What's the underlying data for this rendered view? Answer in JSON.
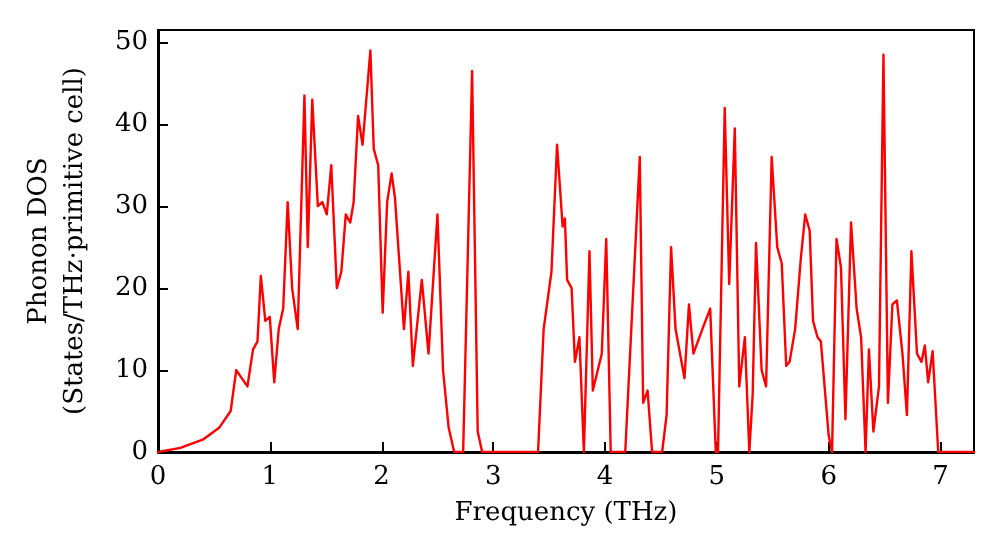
{
  "chart_data": {
    "type": "line",
    "xlabel": "Frequency (THz)",
    "ylabel": "Phonon DOS\n(States/THz·primitive cell)",
    "xlim": [
      0,
      7.3
    ],
    "ylim": [
      0,
      51.5
    ],
    "xticks": [
      0,
      1,
      2,
      3,
      4,
      5,
      6,
      7
    ],
    "yticks": [
      0,
      10,
      20,
      30,
      40,
      50
    ],
    "grid": false,
    "marker": "none",
    "line_style": "solid",
    "series": [
      {
        "color": "#ff0000",
        "x": [
          0,
          0.2,
          0.4,
          0.55,
          0.65,
          0.7,
          0.8,
          0.85,
          0.89,
          0.92,
          0.96,
          1.0,
          1.04,
          1.08,
          1.12,
          1.16,
          1.2,
          1.25,
          1.31,
          1.34,
          1.38,
          1.43,
          1.47,
          1.51,
          1.55,
          1.6,
          1.64,
          1.68,
          1.72,
          1.75,
          1.79,
          1.83,
          1.9,
          1.93,
          1.97,
          2.01,
          2.05,
          2.09,
          2.12,
          2.2,
          2.24,
          2.28,
          2.36,
          2.42,
          2.5,
          2.55,
          2.6,
          2.65,
          2.73,
          2.81,
          2.86,
          2.9,
          3.4,
          3.45,
          3.52,
          3.57,
          3.62,
          3.64,
          3.66,
          3.7,
          3.73,
          3.77,
          3.81,
          3.86,
          3.89,
          3.97,
          4.01,
          4.05,
          4.18,
          4.31,
          4.34,
          4.38,
          4.42,
          4.51,
          4.55,
          4.59,
          4.63,
          4.71,
          4.75,
          4.79,
          4.87,
          4.94,
          4.99,
          5.01,
          5.07,
          5.11,
          5.16,
          5.2,
          5.25,
          5.29,
          5.32,
          5.35,
          5.4,
          5.44,
          5.49,
          5.54,
          5.58,
          5.62,
          5.65,
          5.7,
          5.75,
          5.79,
          5.83,
          5.86,
          5.9,
          5.93,
          6.0,
          6.03,
          6.07,
          6.11,
          6.15,
          6.2,
          6.25,
          6.29,
          6.33,
          6.36,
          6.4,
          6.45,
          6.49,
          6.53,
          6.57,
          6.61,
          6.66,
          6.7,
          6.74,
          6.79,
          6.83,
          6.86,
          6.89,
          6.93,
          6.98,
          7.3
        ],
        "values": [
          0,
          0.5,
          1.5,
          3,
          5,
          10,
          8,
          12.5,
          13.5,
          21.5,
          16,
          16.5,
          8.5,
          15,
          17.5,
          30.5,
          20,
          15,
          43.5,
          25,
          43,
          30,
          30.5,
          29,
          35,
          20,
          22,
          29,
          28,
          30.5,
          41,
          37.5,
          49,
          37,
          35,
          17,
          30.5,
          34,
          31,
          15,
          22,
          10.5,
          21,
          12,
          29,
          10,
          3,
          0,
          0,
          46.5,
          2.5,
          0,
          0,
          15,
          22,
          37.5,
          27.5,
          28.5,
          21,
          20,
          11,
          14,
          0,
          24.5,
          7.5,
          12,
          26,
          0,
          0,
          36,
          6,
          7.5,
          0,
          0,
          4.5,
          25,
          15,
          9,
          18,
          12,
          15,
          17.5,
          0,
          0,
          42,
          20.5,
          39.5,
          8,
          14,
          0,
          7,
          25.5,
          10,
          8,
          36,
          25,
          23,
          10.5,
          11,
          15,
          23.5,
          29,
          27,
          16,
          14,
          13.5,
          2,
          0,
          26,
          22.5,
          4,
          28,
          17.5,
          14,
          0,
          12.5,
          2.5,
          8,
          48.5,
          6,
          18,
          18.5,
          12,
          4.5,
          24.5,
          12,
          11,
          13,
          8.5,
          12.3,
          0,
          0
        ]
      }
    ]
  }
}
